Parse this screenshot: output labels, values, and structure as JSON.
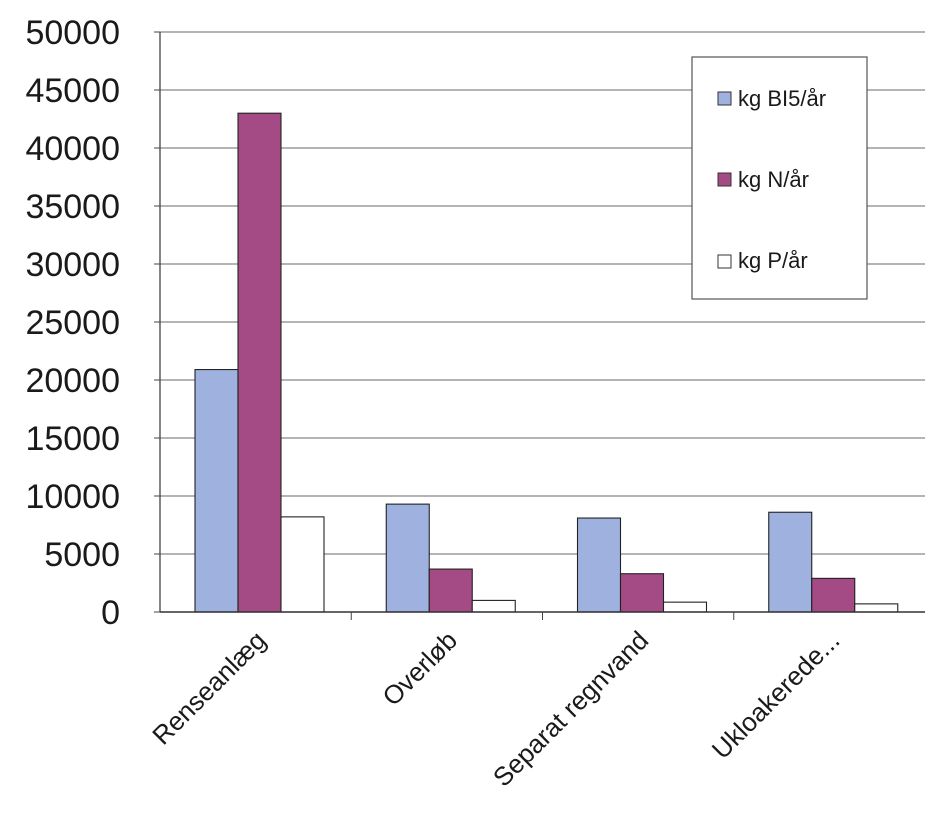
{
  "chart_data": {
    "type": "bar",
    "categories": [
      "Renseanlæg",
      "Overløb",
      "Separat regnvand",
      "Ukloakerede..."
    ],
    "series": [
      {
        "name": "kg BI5/år",
        "values": [
          20900,
          9300,
          8100,
          8600
        ],
        "color": "#9fb1df"
      },
      {
        "name": "kg N/år",
        "values": [
          43000,
          3700,
          3300,
          2900
        ],
        "color": "#a44b86"
      },
      {
        "name": "kg P/år",
        "values": [
          8200,
          1000,
          850,
          700
        ],
        "color": "#ffffff"
      }
    ],
    "y_ticks": [
      "0",
      "5000",
      "10000",
      "15000",
      "20000",
      "25000",
      "30000",
      "35000",
      "40000",
      "45000",
      "50000"
    ],
    "ylim": [
      0,
      50000
    ],
    "grid": true,
    "legend": "top-right"
  }
}
